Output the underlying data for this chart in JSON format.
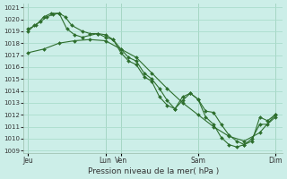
{
  "background_color": "#cceee8",
  "grid_color": "#aaddcc",
  "line_color": "#2d6e2d",
  "marker_color": "#2d6e2d",
  "ylabel_min": 1009,
  "ylabel_max": 1021,
  "xlabel": "Pression niveau de la mer( hPa )",
  "xtick_positions": [
    0,
    5,
    6,
    11,
    16
  ],
  "xtick_labels": [
    "Jeu",
    "Lun",
    "Ven",
    "Sam",
    "Dim"
  ],
  "series": [
    {
      "x": [
        0,
        0.5,
        1.0,
        1.5,
        2.0,
        2.5,
        3.0,
        3.5,
        4.5,
        5.0,
        5.5,
        6.0,
        6.5,
        7.0,
        7.5,
        8.0,
        8.5,
        9.0,
        9.5,
        10.0,
        10.5,
        11.0,
        11.5,
        12.0,
        12.5,
        13.0,
        13.5,
        14.0,
        14.5,
        15.0,
        15.5,
        16.0
      ],
      "y": [
        1019.2,
        1019.5,
        1020.2,
        1020.5,
        1020.5,
        1019.2,
        1018.7,
        1018.5,
        1018.8,
        1018.5,
        1018.3,
        1017.2,
        1016.5,
        1016.2,
        1015.2,
        1014.8,
        1013.5,
        1012.8,
        1012.5,
        1013.2,
        1013.8,
        1013.3,
        1011.8,
        1011.2,
        1010.1,
        1009.5,
        1009.3,
        1009.5,
        1010.0,
        1011.2,
        1011.2,
        1011.8
      ]
    },
    {
      "x": [
        0,
        0.4,
        0.8,
        1.2,
        1.6,
        2.0,
        2.4,
        2.8,
        3.5,
        4.0,
        4.5,
        5.0,
        5.5,
        6.0,
        6.5,
        7.0,
        7.5,
        8.0,
        8.5,
        9.0,
        9.5,
        10.0,
        10.5,
        11.0,
        11.5,
        12.0,
        12.5,
        13.0,
        13.5,
        14.0,
        14.5,
        15.0,
        15.5,
        16.0
      ],
      "y": [
        1019.0,
        1019.5,
        1019.8,
        1020.2,
        1020.4,
        1020.5,
        1020.2,
        1019.5,
        1019.0,
        1018.8,
        1018.8,
        1018.7,
        1018.3,
        1017.5,
        1016.8,
        1016.5,
        1015.5,
        1015.0,
        1014.2,
        1013.2,
        1012.5,
        1013.5,
        1013.8,
        1013.3,
        1012.3,
        1012.2,
        1011.2,
        1010.3,
        1009.8,
        1009.5,
        1009.8,
        1011.8,
        1011.5,
        1012.0
      ]
    },
    {
      "x": [
        0,
        1.0,
        2.0,
        3.0,
        4.0,
        5.0,
        6.0,
        7.0,
        8.0,
        9.0,
        10.0,
        11.0,
        12.0,
        13.0,
        14.0,
        15.0,
        16.0
      ],
      "y": [
        1017.2,
        1017.5,
        1018.0,
        1018.2,
        1018.3,
        1018.2,
        1017.5,
        1016.8,
        1015.5,
        1014.2,
        1013.0,
        1012.0,
        1011.0,
        1010.2,
        1009.8,
        1010.5,
        1012.0
      ]
    }
  ]
}
